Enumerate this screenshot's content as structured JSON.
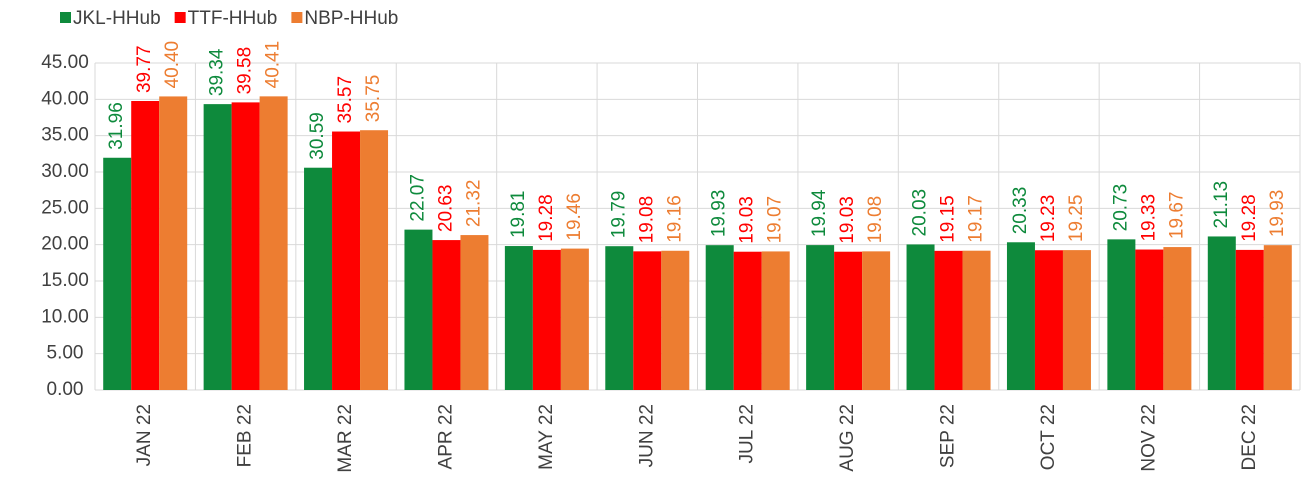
{
  "chart_data": {
    "type": "bar",
    "categories": [
      "JAN 22",
      "FEB 22",
      "MAR 22",
      "APR 22",
      "MAY 22",
      "JUN 22",
      "JUL 22",
      "AUG 22",
      "SEP 22",
      "OCT 22",
      "NOV 22",
      "DEC 22"
    ],
    "series": [
      {
        "name": "JKL-HHub",
        "color": "#0e8a3c",
        "values": [
          31.96,
          39.34,
          30.59,
          22.07,
          19.81,
          19.79,
          19.93,
          19.94,
          20.03,
          20.33,
          20.73,
          21.13
        ],
        "value_labels": [
          "31.96",
          "39.34",
          "30.59",
          "22.07",
          "19.81",
          "19.79",
          "19.93",
          "19.94",
          "20.03",
          "20.33",
          "20.73",
          "21.13"
        ]
      },
      {
        "name": "TTF-HHub",
        "color": "#ff0000",
        "values": [
          39.77,
          39.58,
          35.57,
          20.63,
          19.28,
          19.08,
          19.03,
          19.03,
          19.15,
          19.23,
          19.33,
          19.28
        ],
        "value_labels": [
          "39.77",
          "39.58",
          "35.57",
          "20.63",
          "19.28",
          "19.08",
          "19.03",
          "19.03",
          "19.15",
          "19.23",
          "19.33",
          "19.28"
        ]
      },
      {
        "name": "NBP-HHub",
        "color": "#ed7d31",
        "values": [
          40.4,
          40.41,
          35.75,
          21.32,
          19.46,
          19.16,
          19.07,
          19.08,
          19.17,
          19.25,
          19.67,
          19.93
        ],
        "value_labels": [
          "40.40",
          "40.41",
          "35.75",
          "21.32",
          "19.46",
          "19.16",
          "19.07",
          "19.08",
          "19.17",
          "19.25",
          "19.67",
          "19.93"
        ]
      }
    ],
    "ylim": [
      0,
      45
    ],
    "yticks": [
      {
        "value": 0,
        "label": "0.00"
      },
      {
        "value": 5,
        "label": "5.00"
      },
      {
        "value": 10,
        "label": "10.00"
      },
      {
        "value": 15,
        "label": "15.00"
      },
      {
        "value": 20,
        "label": "20.00"
      },
      {
        "value": 25,
        "label": "25.00"
      },
      {
        "value": 30,
        "label": "30.00"
      },
      {
        "value": 35,
        "label": "35.00"
      },
      {
        "value": 40,
        "label": "40.00"
      },
      {
        "value": 45,
        "label": "45.00"
      }
    ],
    "grid": true,
    "legend": "top-left"
  }
}
